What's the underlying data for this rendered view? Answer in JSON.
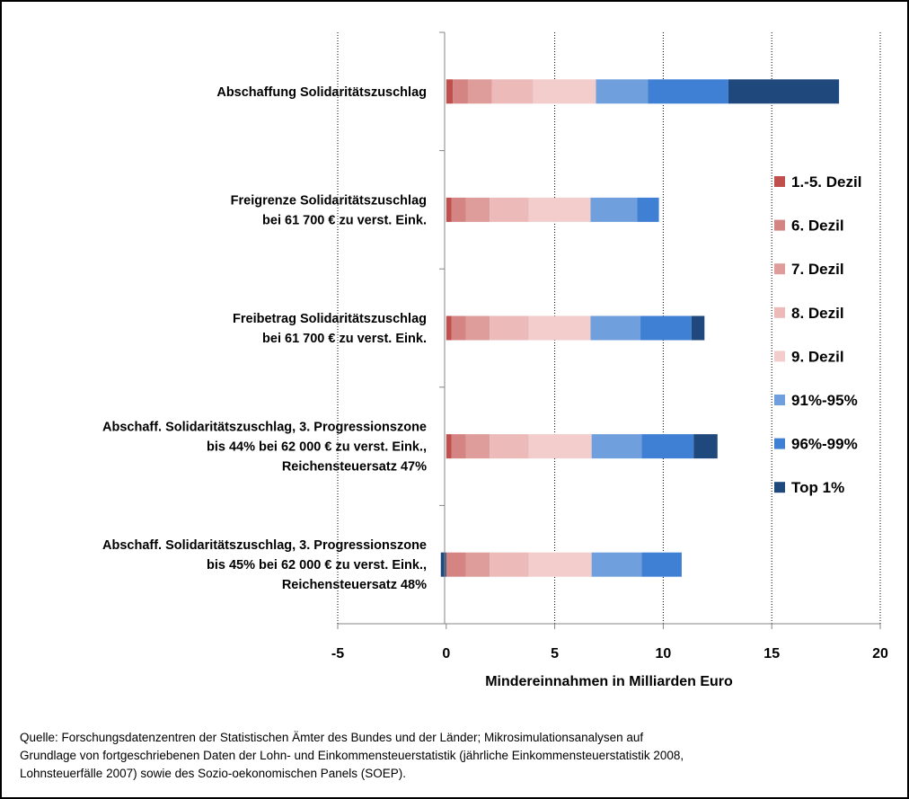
{
  "chart_data": {
    "type": "bar",
    "orientation": "horizontal",
    "stacked": true,
    "xlabel": "Mindereinnahmen in Milliarden Euro",
    "xlim": [
      -5,
      20
    ],
    "xticks": [
      -5,
      0,
      5,
      10,
      15,
      20
    ],
    "grid": "vertical, dotted",
    "legend_position": "right",
    "categories": [
      [
        "Abschaffung Solidaritätszuschlag"
      ],
      [
        "Freigrenze Solidaritätszuschlag",
        "bei 61 700 € zu verst. Eink."
      ],
      [
        "Freibetrag Solidaritätszuschlag",
        "bei 61 700 € zu verst. Eink."
      ],
      [
        "Abschaff. Solidaritätszuschlag, 3. Progressionszone",
        "bis 44% bei 62 000 € zu verst. Eink.,",
        "Reichensteuersatz 47%"
      ],
      [
        "Abschaff. Solidaritätszuschlag, 3. Progressionszone",
        "bis 45% bei 62 000 € zu verst. Eink.,",
        "Reichensteuersatz 48%"
      ]
    ],
    "series": [
      {
        "name": "1.-5. Dezil",
        "color": "#c0504d",
        "values": [
          0.3,
          0.25,
          0.25,
          0.25,
          0.0
        ]
      },
      {
        "name": "6. Dezil",
        "color": "#d48583",
        "values": [
          0.7,
          0.65,
          0.65,
          0.65,
          0.9
        ]
      },
      {
        "name": "7. Dezil",
        "color": "#de9c9a",
        "values": [
          1.1,
          1.1,
          1.1,
          1.1,
          1.1
        ]
      },
      {
        "name": "8. Dezil",
        "color": "#ebbab9",
        "values": [
          1.9,
          1.8,
          1.8,
          1.8,
          1.8
        ]
      },
      {
        "name": "9. Dezil",
        "color": "#f2cdcc",
        "values": [
          2.9,
          2.85,
          2.85,
          2.9,
          2.9
        ]
      },
      {
        "name": "91%-95%",
        "color": "#6f9fdc",
        "values": [
          2.4,
          2.15,
          2.3,
          2.3,
          2.3
        ]
      },
      {
        "name": "96%-99%",
        "color": "#3f7fd4",
        "values": [
          3.7,
          1.0,
          2.35,
          2.4,
          1.85
        ]
      },
      {
        "name": "Top 1%",
        "color": "#1f497d",
        "values": [
          5.1,
          0.0,
          0.6,
          1.1,
          -0.25
        ]
      }
    ]
  },
  "source_note": [
    "Quelle: Forschungsdatenzentren der Statistischen Ämter des Bundes und der Länder; Mikrosimulationsanalysen auf",
    "Grundlage von fortgeschriebenen Daten der Lohn- und Einkommensteuerstatistik (jährliche Einkommensteuerstatistik 2008,",
    "Lohnsteuerfälle 2007) sowie des Sozio-oekonomischen Panels (SOEP)."
  ]
}
